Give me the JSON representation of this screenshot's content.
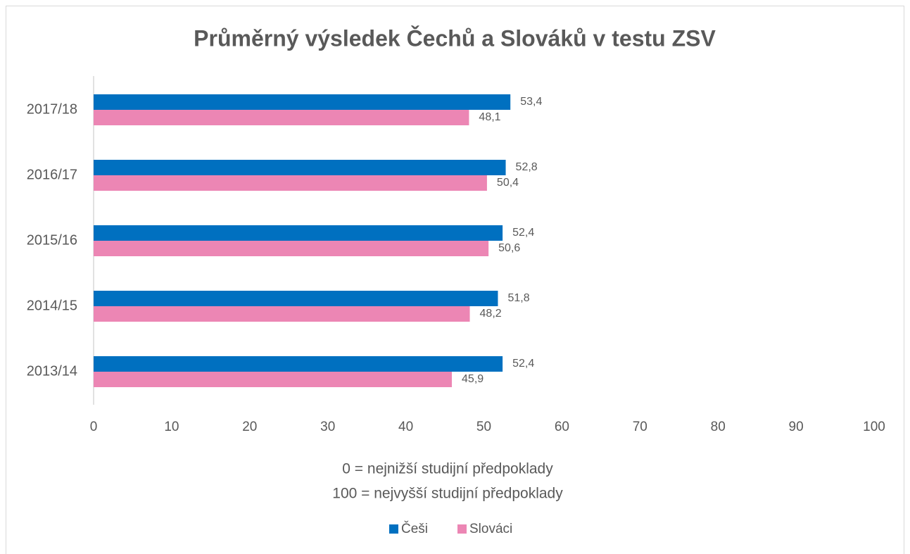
{
  "chart_data": {
    "type": "hbar",
    "title": "Průměrný výsledek Čechů a Slováků v testu ZSV",
    "categories": [
      "2017/18",
      "2016/17",
      "2015/16",
      "2014/15",
      "2013/14"
    ],
    "series": [
      {
        "name": "Češi",
        "color": "#0070c0",
        "values": [
          53.4,
          52.8,
          52.4,
          51.8,
          52.4
        ],
        "value_labels": [
          "53,4",
          "52,8",
          "52,4",
          "51,8",
          "52,4"
        ]
      },
      {
        "name": "Slováci",
        "color": "#ec86b4",
        "values": [
          48.1,
          50.4,
          50.6,
          48.2,
          45.9
        ],
        "value_labels": [
          "48,1",
          "50,4",
          "50,6",
          "48,2",
          "45,9"
        ]
      }
    ],
    "xlim": [
      0,
      100
    ],
    "xticks": [
      0,
      10,
      20,
      30,
      40,
      50,
      60,
      70,
      80,
      90,
      100
    ],
    "xlabel_lines": [
      "0 = nejnižší studijní předpoklady",
      "100 = nejvyšší studijní předpoklady"
    ],
    "grid": false,
    "legend": "bottom"
  }
}
